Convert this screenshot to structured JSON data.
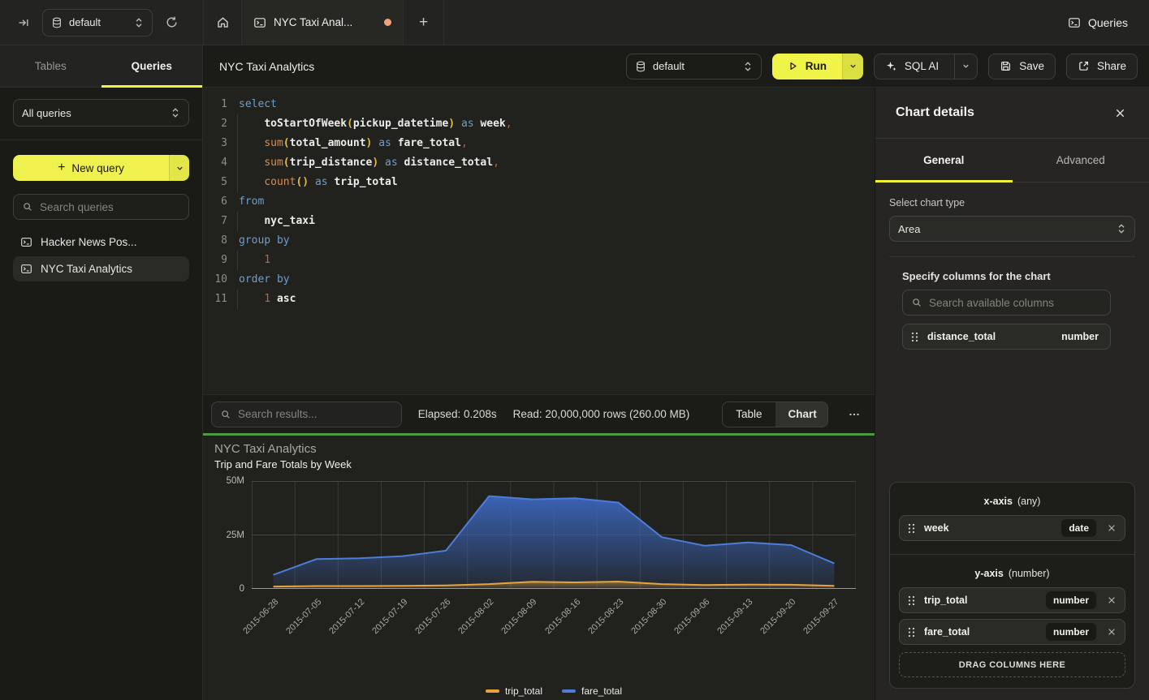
{
  "topbar": {
    "database_selector": "default",
    "tab_title": "NYC Taxi Anal...",
    "queries_link": "Queries"
  },
  "sidebar": {
    "tabs": {
      "tables": "Tables",
      "queries": "Queries"
    },
    "filter_select": "All queries",
    "new_query_label": "New query",
    "search_placeholder": "Search queries",
    "items": [
      {
        "label": "Hacker News Pos...",
        "active": false
      },
      {
        "label": "NYC Taxi Analytics",
        "active": true
      }
    ]
  },
  "toolbar": {
    "title": "NYC Taxi Analytics",
    "database_selector": "default",
    "run_label": "Run",
    "sql_ai_label": "SQL AI",
    "save_label": "Save",
    "share_label": "Share"
  },
  "editor": {
    "lines": [
      {
        "n": "1",
        "indent": false,
        "tokens": [
          [
            "kw",
            "select"
          ]
        ]
      },
      {
        "n": "2",
        "indent": true,
        "tokens": [
          [
            "pl",
            "    "
          ],
          [
            "id",
            "toStartOfWeek"
          ],
          [
            "par",
            "("
          ],
          [
            "id",
            "pickup_datetime"
          ],
          [
            "par",
            ")"
          ],
          [
            "pl",
            " "
          ],
          [
            "kw",
            "as"
          ],
          [
            "pl",
            " "
          ],
          [
            "id",
            "week"
          ],
          [
            "pun",
            ","
          ]
        ]
      },
      {
        "n": "3",
        "indent": true,
        "tokens": [
          [
            "pl",
            "    "
          ],
          [
            "fn",
            "sum"
          ],
          [
            "par",
            "("
          ],
          [
            "id",
            "total_amount"
          ],
          [
            "par",
            ")"
          ],
          [
            "pl",
            " "
          ],
          [
            "kw",
            "as"
          ],
          [
            "pl",
            " "
          ],
          [
            "id",
            "fare_total"
          ],
          [
            "pun",
            ","
          ]
        ]
      },
      {
        "n": "4",
        "indent": true,
        "tokens": [
          [
            "pl",
            "    "
          ],
          [
            "fn",
            "sum"
          ],
          [
            "par",
            "("
          ],
          [
            "id",
            "trip_distance"
          ],
          [
            "par",
            ")"
          ],
          [
            "pl",
            " "
          ],
          [
            "kw",
            "as"
          ],
          [
            "pl",
            " "
          ],
          [
            "id",
            "distance_total"
          ],
          [
            "pun",
            ","
          ]
        ]
      },
      {
        "n": "5",
        "indent": true,
        "tokens": [
          [
            "pl",
            "    "
          ],
          [
            "fn",
            "count"
          ],
          [
            "par",
            "()"
          ],
          [
            "pl",
            " "
          ],
          [
            "kw",
            "as"
          ],
          [
            "pl",
            " "
          ],
          [
            "id",
            "trip_total"
          ]
        ]
      },
      {
        "n": "6",
        "indent": false,
        "tokens": [
          [
            "kw",
            "from"
          ]
        ]
      },
      {
        "n": "7",
        "indent": true,
        "tokens": [
          [
            "pl",
            "    "
          ],
          [
            "id",
            "nyc_taxi"
          ]
        ]
      },
      {
        "n": "8",
        "indent": false,
        "tokens": [
          [
            "kw",
            "group by"
          ]
        ]
      },
      {
        "n": "9",
        "indent": true,
        "tokens": [
          [
            "num",
            "    1"
          ]
        ]
      },
      {
        "n": "10",
        "indent": false,
        "tokens": [
          [
            "kw",
            "order by"
          ]
        ]
      },
      {
        "n": "11",
        "indent": true,
        "tokens": [
          [
            "num",
            "    1"
          ],
          [
            "pl",
            " "
          ],
          [
            "id",
            "asc"
          ]
        ]
      }
    ]
  },
  "results": {
    "search_placeholder": "Search results...",
    "elapsed": "Elapsed: 0.208s",
    "read": "Read: 20,000,000 rows (260.00 MB)",
    "view_table": "Table",
    "view_chart": "Chart"
  },
  "chart_data": {
    "type": "area",
    "title": "NYC Taxi Analytics",
    "subtitle": "Trip and Fare Totals by Week",
    "x": [
      "2015-06-28",
      "2015-07-05",
      "2015-07-12",
      "2015-07-19",
      "2015-07-26",
      "2015-08-02",
      "2015-08-09",
      "2015-08-16",
      "2015-08-23",
      "2015-08-30",
      "2015-09-06",
      "2015-09-13",
      "2015-09-20",
      "2015-09-27"
    ],
    "series": [
      {
        "name": "trip_total",
        "color": "#e8a33c",
        "values_millions": [
          1.1,
          1.3,
          1.3,
          1.4,
          1.6,
          2.2,
          3.3,
          3.0,
          3.4,
          2.2,
          1.8,
          2.0,
          1.9,
          1.4
        ]
      },
      {
        "name": "fare_total",
        "color": "#4d7dd8",
        "values_millions": [
          6.5,
          13.8,
          14.2,
          15.2,
          17.7,
          43.0,
          41.5,
          42.0,
          40.0,
          24.0,
          20.0,
          21.5,
          20.3,
          11.8
        ]
      }
    ],
    "ylim_millions": [
      0,
      50
    ],
    "yticks": [
      {
        "label": "50M",
        "value": 50
      },
      {
        "label": "25M",
        "value": 25
      },
      {
        "label": "0",
        "value": 0
      }
    ],
    "grid": true,
    "legend_position": "bottom"
  },
  "details": {
    "title": "Chart details",
    "tabs": {
      "general": "General",
      "advanced": "Advanced"
    },
    "chart_type_label": "Select chart type",
    "chart_type_value": "Area",
    "columns_label": "Specify columns for the chart",
    "columns_search_placeholder": "Search available columns",
    "available_columns": [
      {
        "name": "distance_total",
        "type": "number"
      }
    ],
    "x_axis": {
      "title": "x-axis",
      "hint": "(any)",
      "columns": [
        {
          "name": "week",
          "type": "date"
        }
      ]
    },
    "y_axis": {
      "title": "y-axis",
      "hint": "(number)",
      "columns": [
        {
          "name": "trip_total",
          "type": "number"
        },
        {
          "name": "fare_total",
          "type": "number"
        }
      ]
    },
    "drop_zone": "DRAG COLUMNS HERE"
  },
  "colors": {
    "accent_yellow": "#f0f348",
    "progress_green": "#4f9740",
    "unsaved_dot": "#f0a37b",
    "series_trip_total": "#e8a33c",
    "series_fare_total": "#4d7dd8"
  }
}
